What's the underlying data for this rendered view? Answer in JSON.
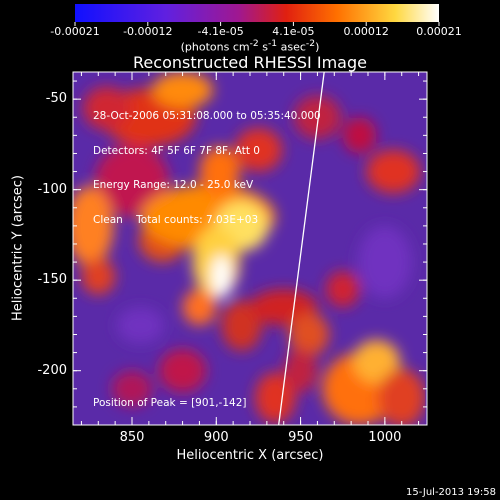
{
  "colorbar": {
    "ticks": [
      "-0.00021",
      "-0.00012",
      "-4.1e-05",
      "4.1e-05",
      "0.00012",
      "0.00021"
    ],
    "units_html": "(photons cm<sup>-2</sup> s<sup>-1</sup> asec<sup>-2</sup>)"
  },
  "chart_data": {
    "type": "heatmap",
    "title": "Reconstructed RHESSI Image",
    "xlabel": "Heliocentric X (arcsec)",
    "ylabel": "Heliocentric Y (arcsec)",
    "xlim": [
      815,
      1025
    ],
    "ylim": [
      -230,
      -35
    ],
    "xticks": [
      850,
      900,
      950,
      1000
    ],
    "yticks": [
      -50,
      -100,
      -150,
      -200
    ],
    "clim": [
      -0.00021,
      0.00021
    ],
    "colormap": "blue-purple-red-orange-yellow-white",
    "annotations": [
      "28-Oct-2006 05:31:08.000 to 05:35:40.000",
      "Detectors: 4F 5F 6F 7F 8F, Att 0",
      "Energy Range: 12.0 - 25.0 keV",
      "Clean    Total counts: 7.03E+03"
    ],
    "peak_label": "Position of Peak = [901,-142]",
    "peak": [
      901,
      -142
    ],
    "limb_line": [
      [
        937,
        -230
      ],
      [
        964,
        -35
      ]
    ]
  },
  "footer": "15-Jul-2013 19:58"
}
